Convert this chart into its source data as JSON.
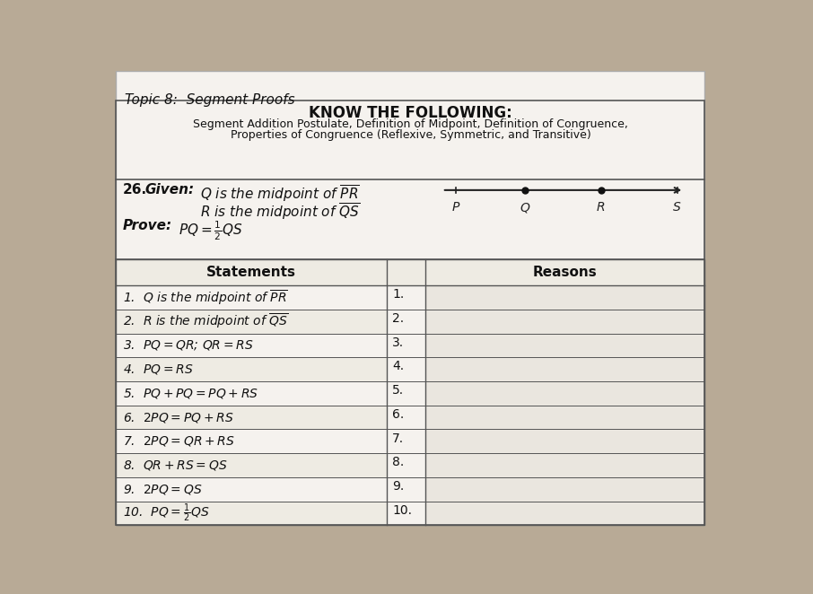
{
  "topic_title": "Topic 8:  Segment Proofs",
  "know_heading": "KNOW THE FOLLOWING:",
  "know_line2": "Segment Addition Postulate, Definition of Midpoint, Definition of Congruence,",
  "know_line3": "Properties of Congruence (Reflexive, Symmetric, and Transitive)",
  "statements": [
    "1.  $Q$ is the midpoint of $\\overline{PR}$",
    "2.  $R$ is the midpoint of $\\overline{QS}$",
    "3.  $PQ = QR$; $QR = RS$",
    "4.  $PQ = RS$",
    "5.  $PQ + PQ = PQ + RS$",
    "6.  $2PQ = PQ + RS$",
    "7.  $2PQ = QR + RS$",
    "8.  $QR + RS = QS$",
    "9.  $2PQ = QS$",
    "10.  $PQ = \\frac{1}{2}QS$"
  ],
  "reason_numbers": [
    "1.",
    "2.",
    "3.",
    "4.",
    "5.",
    "6.",
    "7.",
    "8.",
    "9.",
    "10."
  ],
  "bg_outer": "#b8aa96",
  "bg_paper": "#f5f2ee",
  "bg_inner": "#eae6df",
  "line_color": "#444444",
  "text_color": "#111111"
}
